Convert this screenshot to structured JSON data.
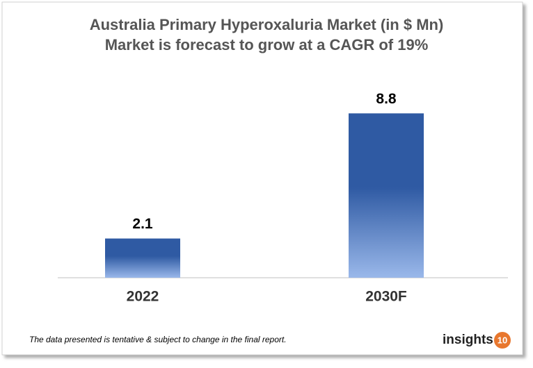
{
  "chart_data": {
    "type": "bar",
    "title": "Australia Primary Hyperoxaluria Market (in $ Mn)",
    "subtitle": "Market is forecast to grow at a CAGR of 19%",
    "categories": [
      "2022",
      "2030F"
    ],
    "values": [
      2.1,
      8.8
    ],
    "color": "#2f5aa3",
    "ylim": [
      0,
      10
    ],
    "annotation": "The data presented is tentative & subject to change in the final report.",
    "logo": {
      "text": "insights",
      "badge": "10"
    }
  }
}
